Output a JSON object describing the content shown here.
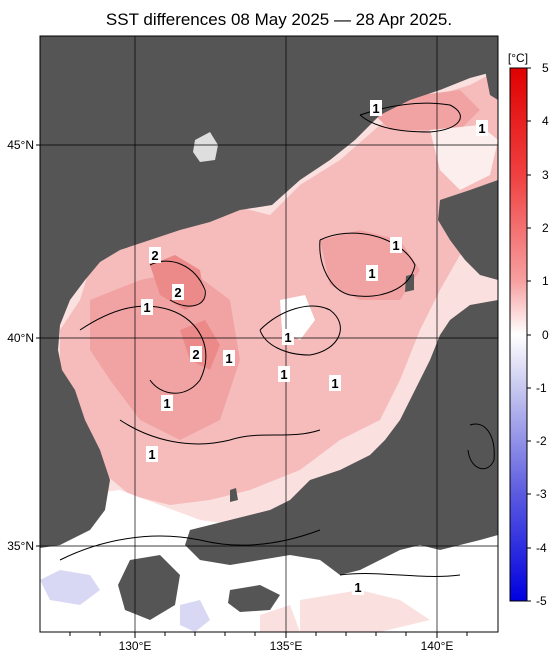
{
  "title": "SST differences 08 May 2025 — 28 Apr 2025.",
  "colorbar": {
    "unit": "[°C]",
    "ticks": [
      "5",
      "4",
      "3",
      "2",
      "1",
      "0",
      "-1",
      "-2",
      "-3",
      "-4",
      "-5"
    ],
    "range": [
      -5,
      5
    ]
  },
  "axes": {
    "lon_labels": [
      "130°E",
      "135°E",
      "140°E"
    ],
    "lat_labels": [
      "45°N",
      "40°N",
      "35°N"
    ]
  },
  "contour_labels": [
    "1",
    "1",
    "2",
    "2",
    "1",
    "1",
    "1",
    "2",
    "1",
    "1",
    "1",
    "1",
    "1",
    "1",
    "1"
  ],
  "colors": {
    "land": "#555555",
    "warm_1": "#fbe3e3",
    "warm_2": "#f4b3b3",
    "warm_3": "#ef9090",
    "neutral": "#ffffff",
    "cool_1": "#d8d8f4",
    "cool_2": "#9c9cdd"
  }
}
